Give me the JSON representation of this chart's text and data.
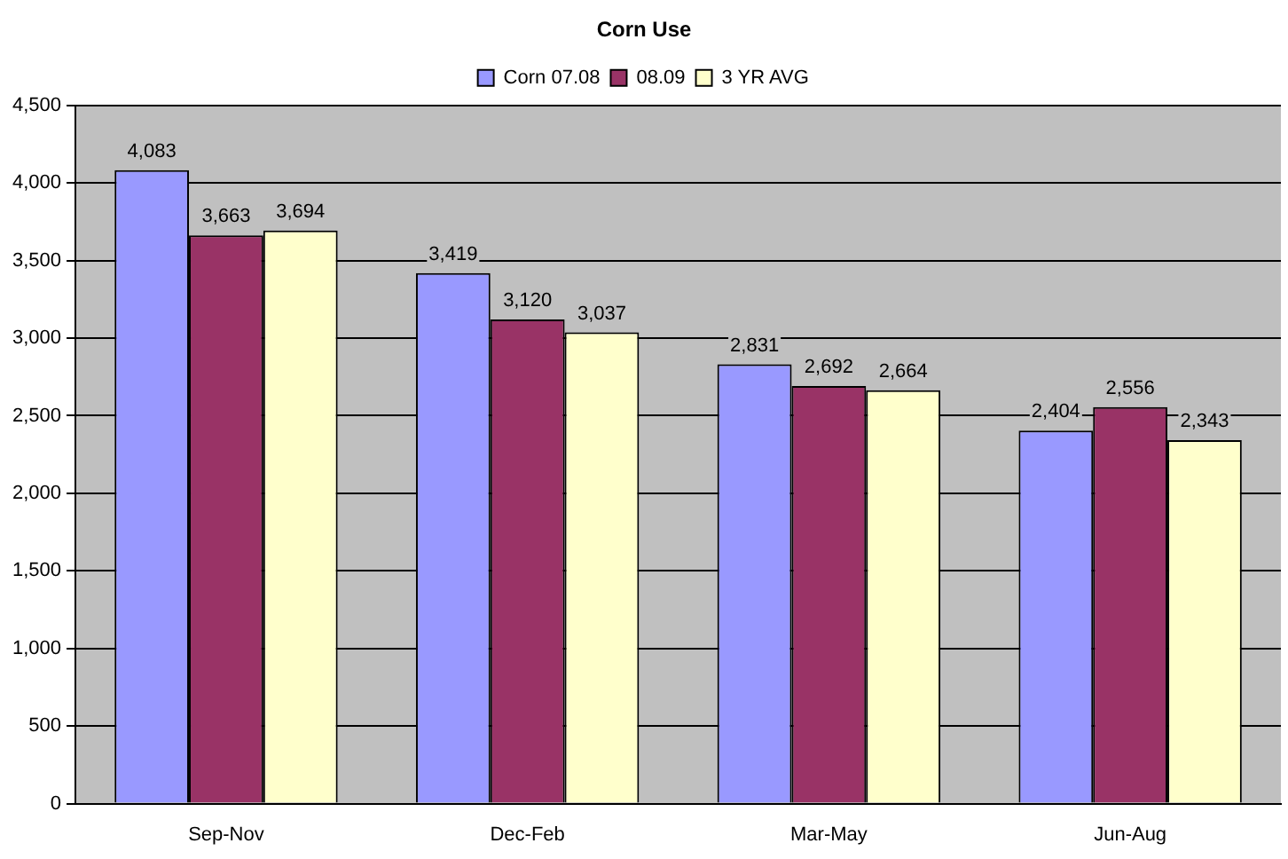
{
  "chart_data": {
    "type": "bar",
    "title": "Corn Use",
    "categories": [
      "Sep-Nov",
      "Dec-Feb",
      "Mar-May",
      "Jun-Aug"
    ],
    "series": [
      {
        "name": "Corn 07.08",
        "color": "#9999ff",
        "values": [
          4083,
          3419,
          2831,
          2404
        ],
        "value_labels": [
          "4,083",
          "3,419",
          "2,831",
          "2,404"
        ]
      },
      {
        "name": "08.09",
        "color": "#993366",
        "values": [
          3663,
          3120,
          2692,
          2556
        ],
        "value_labels": [
          "3,663",
          "3,120",
          "2,692",
          "2,556"
        ]
      },
      {
        "name": "3 YR AVG",
        "color": "#ffffcc",
        "values": [
          3694,
          3037,
          2664,
          2343
        ],
        "value_labels": [
          "3,694",
          "3,037",
          "2,664",
          "2,343"
        ]
      }
    ],
    "ylim": [
      0,
      4500
    ],
    "yticks": [
      0,
      500,
      {
        "value": 1000,
        "label": "1,000"
      },
      {
        "value": 1500,
        "label": "1,500"
      },
      {
        "value": 2000,
        "label": "2,000"
      },
      {
        "value": 2500,
        "label": "2,500"
      },
      {
        "value": 3000,
        "label": "3,000"
      },
      {
        "value": 3500,
        "label": "3,500"
      },
      {
        "value": 4000,
        "label": "4,000"
      },
      {
        "value": 4500,
        "label": "4,500"
      }
    ],
    "grid": "y",
    "legend": "top"
  }
}
